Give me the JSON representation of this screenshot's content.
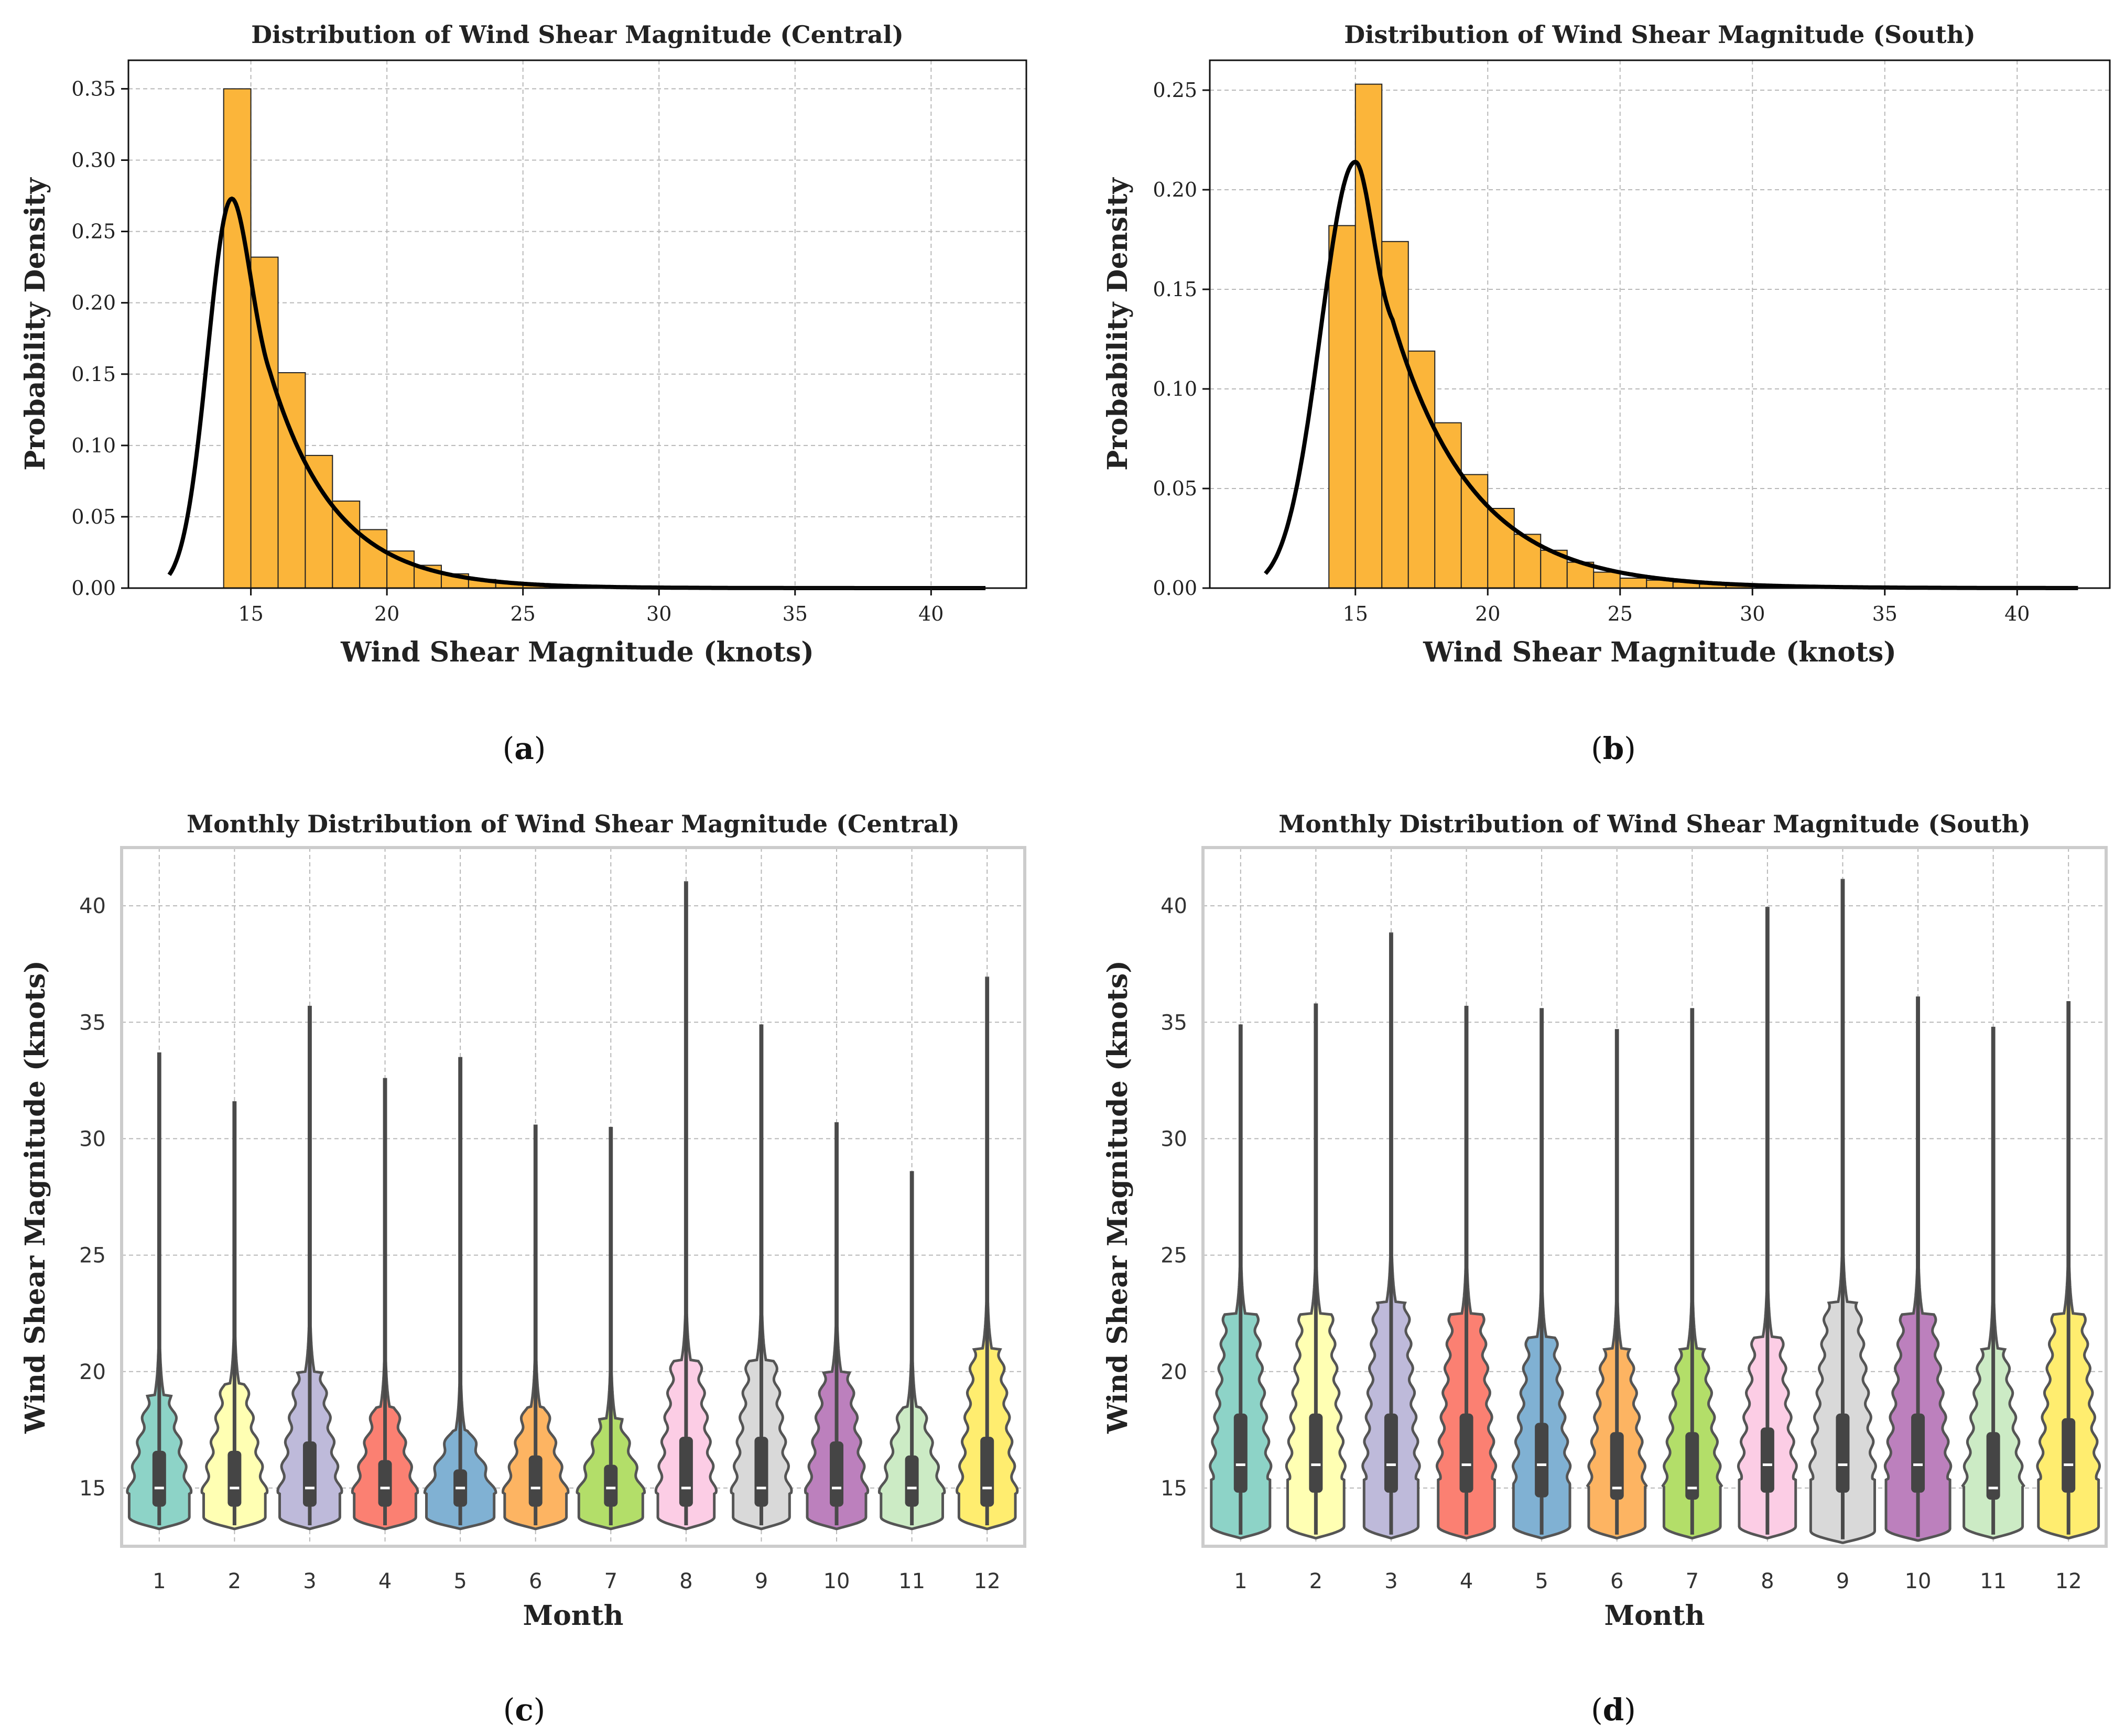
{
  "chart_data": [
    {
      "id": "a",
      "type": "bar",
      "title": "Distribution of Wind Shear Magnitude (Central)",
      "xlabel": "Wind Shear Magnitude (knots)",
      "ylabel": "Probability Density",
      "caption": "a",
      "xlim": [
        10.5,
        43.5
      ],
      "ylim": [
        0,
        0.37
      ],
      "xticks": [
        15,
        20,
        25,
        30,
        35,
        40
      ],
      "yticks": [
        0.0,
        0.05,
        0.1,
        0.15,
        0.2,
        0.25,
        0.3,
        0.35
      ],
      "ytick_labels": [
        "0.00",
        "0.05",
        "0.10",
        "0.15",
        "0.20",
        "0.25",
        "0.30",
        "0.35"
      ],
      "bin_width": 1,
      "bins": [
        {
          "x0": 14,
          "x1": 15,
          "density": 0.35
        },
        {
          "x0": 15,
          "x1": 16,
          "density": 0.232
        },
        {
          "x0": 16,
          "x1": 17,
          "density": 0.151
        },
        {
          "x0": 17,
          "x1": 18,
          "density": 0.093
        },
        {
          "x0": 18,
          "x1": 19,
          "density": 0.061
        },
        {
          "x0": 19,
          "x1": 20,
          "density": 0.041
        },
        {
          "x0": 20,
          "x1": 21,
          "density": 0.026
        },
        {
          "x0": 21,
          "x1": 22,
          "density": 0.016
        },
        {
          "x0": 22,
          "x1": 23,
          "density": 0.01
        },
        {
          "x0": 23,
          "x1": 24,
          "density": 0.006
        },
        {
          "x0": 24,
          "x1": 25,
          "density": 0.004
        },
        {
          "x0": 25,
          "x1": 26,
          "density": 0.002
        },
        {
          "x0": 26,
          "x1": 27,
          "density": 0.0015
        },
        {
          "x0": 27,
          "x1": 28,
          "density": 0.001
        }
      ],
      "fit_curve": {
        "type": "fitted-pdf",
        "start": 12.0,
        "peak_x": 14.3,
        "peak_y": 0.273,
        "end": 42.0,
        "decay": 0.42
      }
    },
    {
      "id": "b",
      "type": "bar",
      "title": "Distribution of Wind Shear Magnitude (South)",
      "xlabel": "Wind Shear Magnitude (knots)",
      "ylabel": "Probability Density",
      "caption": "b",
      "xlim": [
        9.5,
        43.5
      ],
      "ylim": [
        0,
        0.265
      ],
      "xticks": [
        15,
        20,
        25,
        30,
        35,
        40
      ],
      "yticks": [
        0.0,
        0.05,
        0.1,
        0.15,
        0.2,
        0.25
      ],
      "ytick_labels": [
        "0.00",
        "0.05",
        "0.10",
        "0.15",
        "0.20",
        "0.25"
      ],
      "bin_width": 1,
      "bins": [
        {
          "x0": 14,
          "x1": 15,
          "density": 0.182
        },
        {
          "x0": 15,
          "x1": 16,
          "density": 0.253
        },
        {
          "x0": 16,
          "x1": 17,
          "density": 0.174
        },
        {
          "x0": 17,
          "x1": 18,
          "density": 0.119
        },
        {
          "x0": 18,
          "x1": 19,
          "density": 0.083
        },
        {
          "x0": 19,
          "x1": 20,
          "density": 0.057
        },
        {
          "x0": 20,
          "x1": 21,
          "density": 0.04
        },
        {
          "x0": 21,
          "x1": 22,
          "density": 0.027
        },
        {
          "x0": 22,
          "x1": 23,
          "density": 0.019
        },
        {
          "x0": 23,
          "x1": 24,
          "density": 0.013
        },
        {
          "x0": 24,
          "x1": 25,
          "density": 0.008
        },
        {
          "x0": 25,
          "x1": 26,
          "density": 0.005
        },
        {
          "x0": 26,
          "x1": 27,
          "density": 0.004
        },
        {
          "x0": 27,
          "x1": 28,
          "density": 0.003
        },
        {
          "x0": 28,
          "x1": 29,
          "density": 0.002
        },
        {
          "x0": 29,
          "x1": 30,
          "density": 0.0015
        }
      ],
      "fit_curve": {
        "type": "fitted-pdf",
        "start": 11.6,
        "peak_x": 15.0,
        "peak_y": 0.214,
        "end": 42.3,
        "decay": 0.33
      }
    },
    {
      "id": "c",
      "type": "violin",
      "title": "Monthly Distribution of Wind Shear Magnitude (Central)",
      "xlabel": "Month",
      "ylabel": "Wind Shear Magnitude (knots)",
      "caption": "c",
      "ylim": [
        12.5,
        42.5
      ],
      "yticks": [
        15,
        20,
        25,
        30,
        35,
        40
      ],
      "categories": [
        "1",
        "2",
        "3",
        "4",
        "5",
        "6",
        "7",
        "8",
        "9",
        "10",
        "11",
        "12"
      ],
      "colors": [
        "#8dd3c7",
        "#ffffb3",
        "#bebada",
        "#fb8072",
        "#80b1d3",
        "#fdb462",
        "#b3de69",
        "#fccde5",
        "#d9d9d9",
        "#bc80bd",
        "#ccebc5",
        "#ffed6f"
      ],
      "violins": [
        {
          "min": 13.4,
          "q1": 14.2,
          "median": 15.0,
          "q3": 16.6,
          "max": 33.7,
          "hw_base": 0.8,
          "hw_mid": 0.5,
          "body_top": 19.0
        },
        {
          "min": 13.4,
          "q1": 14.2,
          "median": 15.0,
          "q3": 16.6,
          "max": 31.6,
          "hw_base": 0.82,
          "hw_mid": 0.5,
          "body_top": 19.5
        },
        {
          "min": 13.4,
          "q1": 14.2,
          "median": 15.0,
          "q3": 17.0,
          "max": 35.7,
          "hw_base": 0.8,
          "hw_mid": 0.55,
          "body_top": 20.0
        },
        {
          "min": 13.4,
          "q1": 14.2,
          "median": 15.0,
          "q3": 16.2,
          "max": 32.6,
          "hw_base": 0.82,
          "hw_mid": 0.48,
          "body_top": 18.5
        },
        {
          "min": 13.4,
          "q1": 14.2,
          "median": 15.0,
          "q3": 15.8,
          "max": 33.5,
          "hw_base": 0.9,
          "hw_mid": 0.42,
          "body_top": 17.5
        },
        {
          "min": 13.4,
          "q1": 14.2,
          "median": 15.0,
          "q3": 16.4,
          "max": 30.6,
          "hw_base": 0.82,
          "hw_mid": 0.45,
          "body_top": 18.5
        },
        {
          "min": 13.4,
          "q1": 14.2,
          "median": 15.0,
          "q3": 16.0,
          "max": 30.5,
          "hw_base": 0.85,
          "hw_mid": 0.45,
          "body_top": 18.0
        },
        {
          "min": 13.4,
          "q1": 14.2,
          "median": 15.0,
          "q3": 17.2,
          "max": 41.0,
          "hw_base": 0.75,
          "hw_mid": 0.6,
          "body_top": 20.5
        },
        {
          "min": 13.4,
          "q1": 14.2,
          "median": 15.0,
          "q3": 17.2,
          "max": 34.9,
          "hw_base": 0.75,
          "hw_mid": 0.6,
          "body_top": 20.5
        },
        {
          "min": 13.4,
          "q1": 14.2,
          "median": 15.0,
          "q3": 17.0,
          "max": 30.7,
          "hw_base": 0.78,
          "hw_mid": 0.58,
          "body_top": 20.0
        },
        {
          "min": 13.4,
          "q1": 14.2,
          "median": 15.0,
          "q3": 16.4,
          "max": 28.6,
          "hw_base": 0.82,
          "hw_mid": 0.48,
          "body_top": 18.5
        },
        {
          "min": 13.4,
          "q1": 14.2,
          "median": 15.0,
          "q3": 17.2,
          "max": 36.9,
          "hw_base": 0.75,
          "hw_mid": 0.62,
          "body_top": 21.0
        }
      ]
    },
    {
      "id": "d",
      "type": "violin",
      "title": "Monthly Distribution of Wind Shear Magnitude (South)",
      "xlabel": "Month",
      "ylabel": "Wind Shear Magnitude (knots)",
      "caption": "d",
      "ylim": [
        12.5,
        42.5
      ],
      "yticks": [
        15,
        20,
        25,
        30,
        35,
        40
      ],
      "categories": [
        "1",
        "2",
        "3",
        "4",
        "5",
        "6",
        "7",
        "8",
        "9",
        "10",
        "11",
        "12"
      ],
      "colors": [
        "#8dd3c7",
        "#ffffb3",
        "#bebada",
        "#fb8072",
        "#80b1d3",
        "#fdb462",
        "#b3de69",
        "#fccde5",
        "#d9d9d9",
        "#bc80bd",
        "#ccebc5",
        "#ffed6f"
      ],
      "violins": [
        {
          "min": 13.0,
          "q1": 14.8,
          "median": 16.0,
          "q3": 18.2,
          "max": 34.9,
          "hw_base": 0.78,
          "hw_mid": 0.72,
          "body_top": 22.5
        },
        {
          "min": 13.0,
          "q1": 14.8,
          "median": 16.0,
          "q3": 18.2,
          "max": 35.8,
          "hw_base": 0.75,
          "hw_mid": 0.7,
          "body_top": 22.5
        },
        {
          "min": 13.0,
          "q1": 14.8,
          "median": 16.0,
          "q3": 18.2,
          "max": 38.8,
          "hw_base": 0.72,
          "hw_mid": 0.72,
          "body_top": 23.0
        },
        {
          "min": 13.0,
          "q1": 14.8,
          "median": 16.0,
          "q3": 18.2,
          "max": 35.7,
          "hw_base": 0.75,
          "hw_mid": 0.72,
          "body_top": 22.5
        },
        {
          "min": 13.0,
          "q1": 14.6,
          "median": 16.0,
          "q3": 17.8,
          "max": 35.6,
          "hw_base": 0.75,
          "hw_mid": 0.62,
          "body_top": 21.5
        },
        {
          "min": 13.0,
          "q1": 14.5,
          "median": 15.0,
          "q3": 17.4,
          "max": 34.7,
          "hw_base": 0.75,
          "hw_mid": 0.6,
          "body_top": 21.0
        },
        {
          "min": 13.0,
          "q1": 14.5,
          "median": 15.0,
          "q3": 17.4,
          "max": 35.6,
          "hw_base": 0.75,
          "hw_mid": 0.58,
          "body_top": 21.0
        },
        {
          "min": 13.0,
          "q1": 14.8,
          "median": 16.0,
          "q3": 17.6,
          "max": 39.9,
          "hw_base": 0.75,
          "hw_mid": 0.62,
          "body_top": 21.5
        },
        {
          "min": 12.8,
          "q1": 14.8,
          "median": 16.0,
          "q3": 18.2,
          "max": 41.1,
          "hw_base": 0.85,
          "hw_mid": 0.72,
          "body_top": 23.0
        },
        {
          "min": 12.9,
          "q1": 14.8,
          "median": 16.0,
          "q3": 18.2,
          "max": 36.1,
          "hw_base": 0.85,
          "hw_mid": 0.72,
          "body_top": 22.5
        },
        {
          "min": 13.0,
          "q1": 14.5,
          "median": 15.0,
          "q3": 17.4,
          "max": 34.8,
          "hw_base": 0.78,
          "hw_mid": 0.55,
          "body_top": 21.0
        },
        {
          "min": 13.0,
          "q1": 14.8,
          "median": 16.0,
          "q3": 18.0,
          "max": 35.9,
          "hw_base": 0.8,
          "hw_mid": 0.68,
          "body_top": 22.5
        }
      ]
    }
  ]
}
